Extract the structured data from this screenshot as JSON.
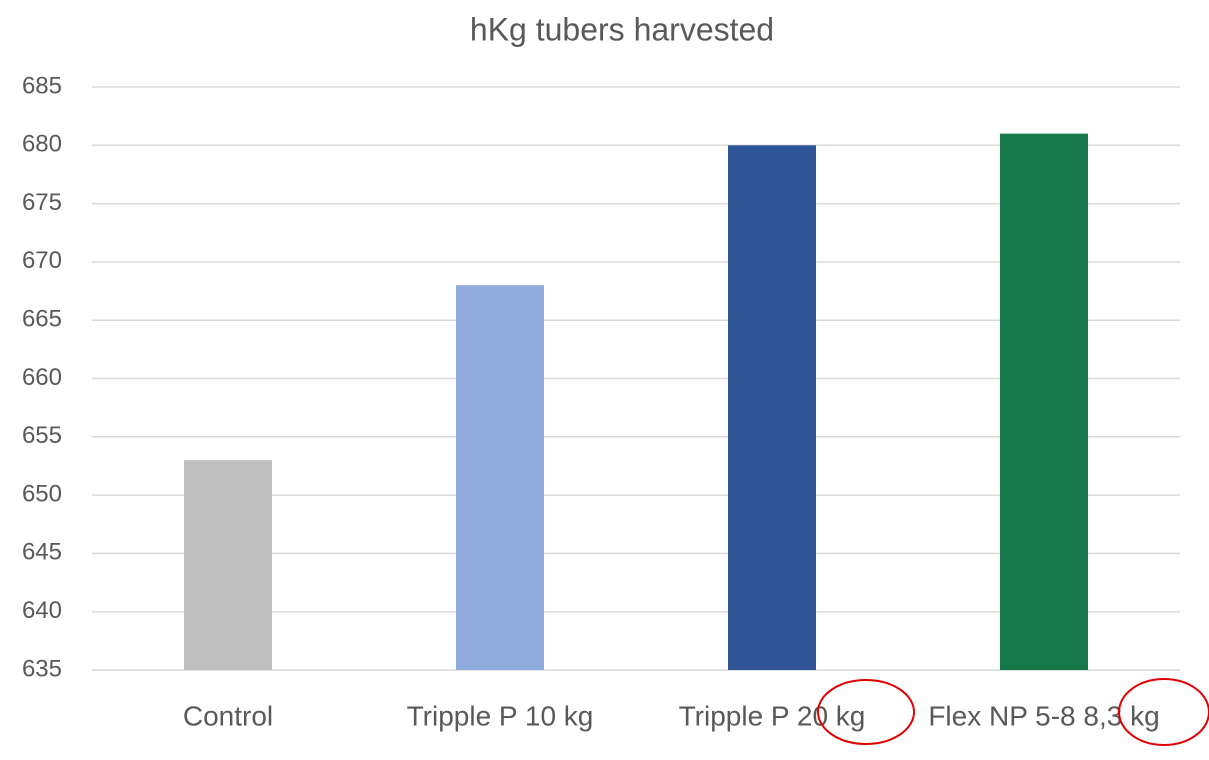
{
  "chart_data": {
    "type": "bar",
    "title": "hKg tubers harvested",
    "categories": [
      "Control",
      "Tripple P 10 kg",
      "Tripple P 20 kg",
      "Flex NP 5-8 8,3 kg"
    ],
    "values": [
      653,
      668,
      680,
      681
    ],
    "colors": [
      "#bfbfbf",
      "#8faadc",
      "#2f5597",
      "#16784a"
    ],
    "ylim": [
      635,
      685
    ],
    "yticks": [
      635,
      640,
      645,
      650,
      655,
      660,
      665,
      670,
      675,
      680,
      685
    ],
    "grid": true
  }
}
